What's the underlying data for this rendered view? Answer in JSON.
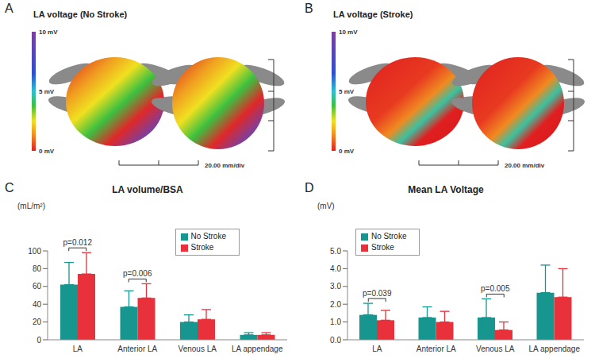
{
  "maps": [
    {
      "panel": "A",
      "title": "LA voltage (No Stroke)",
      "colorbar": {
        "range": [
          0,
          10
        ],
        "ticks": [
          {
            "value": 10,
            "label": "10 mV"
          },
          {
            "value": 5,
            "label": "5 mV"
          },
          {
            "value": 0,
            "label": "0 mV"
          }
        ]
      },
      "scale_label": "20.00 mm/div"
    },
    {
      "panel": "B",
      "title": "LA voltage (Stroke)",
      "colorbar": {
        "range": [
          0,
          10
        ],
        "ticks": [
          {
            "value": 10,
            "label": "10 mV"
          },
          {
            "value": 5,
            "label": "5 mV"
          },
          {
            "value": 0,
            "label": "0 mV"
          }
        ]
      },
      "scale_label": "20.00 mm/div"
    }
  ],
  "chart_data": [
    {
      "panel": "C",
      "type": "bar",
      "title": "LA volume/BSA",
      "y_label": "(mL/m²)",
      "categories": [
        "LA",
        "Anterior LA",
        "Venous LA",
        "LA appendage"
      ],
      "series": [
        {
          "name": "No Stroke",
          "color": "#17958f",
          "values": [
            62,
            37,
            20,
            5.5
          ],
          "errors": [
            25,
            18,
            8,
            2.5
          ]
        },
        {
          "name": "Stroke",
          "color": "#e8313a",
          "values": [
            74,
            47,
            23,
            5.5
          ],
          "errors": [
            24,
            16,
            11,
            2.5
          ]
        }
      ],
      "ylim": [
        0,
        100
      ],
      "yticks": [
        0,
        20,
        40,
        60,
        80,
        100
      ],
      "legend": "upper right",
      "annotations": [
        {
          "text": "p=0.012",
          "category": "LA"
        },
        {
          "text": "p=0.006",
          "category": "Anterior LA"
        }
      ]
    },
    {
      "panel": "D",
      "type": "bar",
      "title": "Mean LA Voltage",
      "y_label": "(mV)",
      "categories": [
        "LA",
        "Anterior LA",
        "Venous LA",
        "LA appendage"
      ],
      "series": [
        {
          "name": "No Stroke",
          "color": "#17958f",
          "values": [
            1.4,
            1.25,
            1.25,
            2.65
          ],
          "errors": [
            0.65,
            0.6,
            1.05,
            1.55
          ]
        },
        {
          "name": "Stroke",
          "color": "#e8313a",
          "values": [
            1.1,
            1.0,
            0.55,
            2.4
          ],
          "errors": [
            0.55,
            0.6,
            0.45,
            1.6
          ]
        }
      ],
      "ylim": [
        0,
        5
      ],
      "yticks": [
        {
          "value": 0,
          "label": "0.0"
        },
        {
          "value": 1,
          "label": "1.0"
        },
        {
          "value": 2,
          "label": "2.0"
        },
        {
          "value": 3,
          "label": "3.0"
        },
        {
          "value": 4,
          "label": "4.0"
        },
        {
          "value": 5,
          "label": "5.0"
        }
      ],
      "legend": "upper left",
      "annotations": [
        {
          "text": "p=0.039",
          "category": "LA"
        },
        {
          "text": "p=0.005",
          "category": "Venous LA"
        }
      ]
    }
  ]
}
